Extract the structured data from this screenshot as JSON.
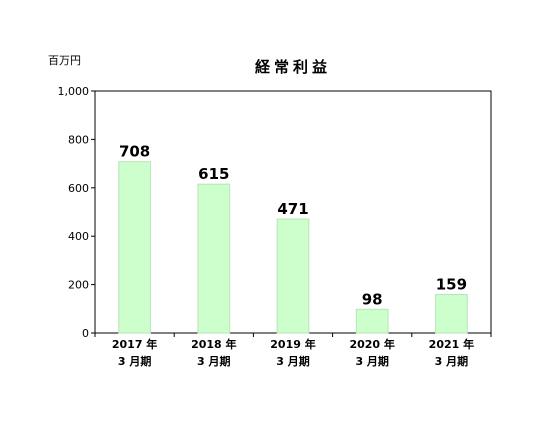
{
  "chart_data": {
    "type": "bar",
    "title": "経常利益",
    "unit_label": "百万円",
    "categories": [
      [
        "2017 年",
        "3 月期"
      ],
      [
        "2018 年",
        "3 月期"
      ],
      [
        "2019 年",
        "3 月期"
      ],
      [
        "2020 年",
        "3 月期"
      ],
      [
        "2021 年",
        "3 月期"
      ]
    ],
    "values": [
      708,
      615,
      471,
      98,
      159
    ],
    "data_labels": [
      "708",
      "615",
      "471",
      "98",
      "159"
    ],
    "ylim": [
      0,
      1000
    ],
    "yticks": [
      0,
      200,
      400,
      600,
      800,
      1000
    ],
    "ytick_labels": [
      "0",
      "200",
      "400",
      "600",
      "800",
      "1,000"
    ],
    "grid": false,
    "legend": "none",
    "bar_color": "#ccffcc"
  }
}
